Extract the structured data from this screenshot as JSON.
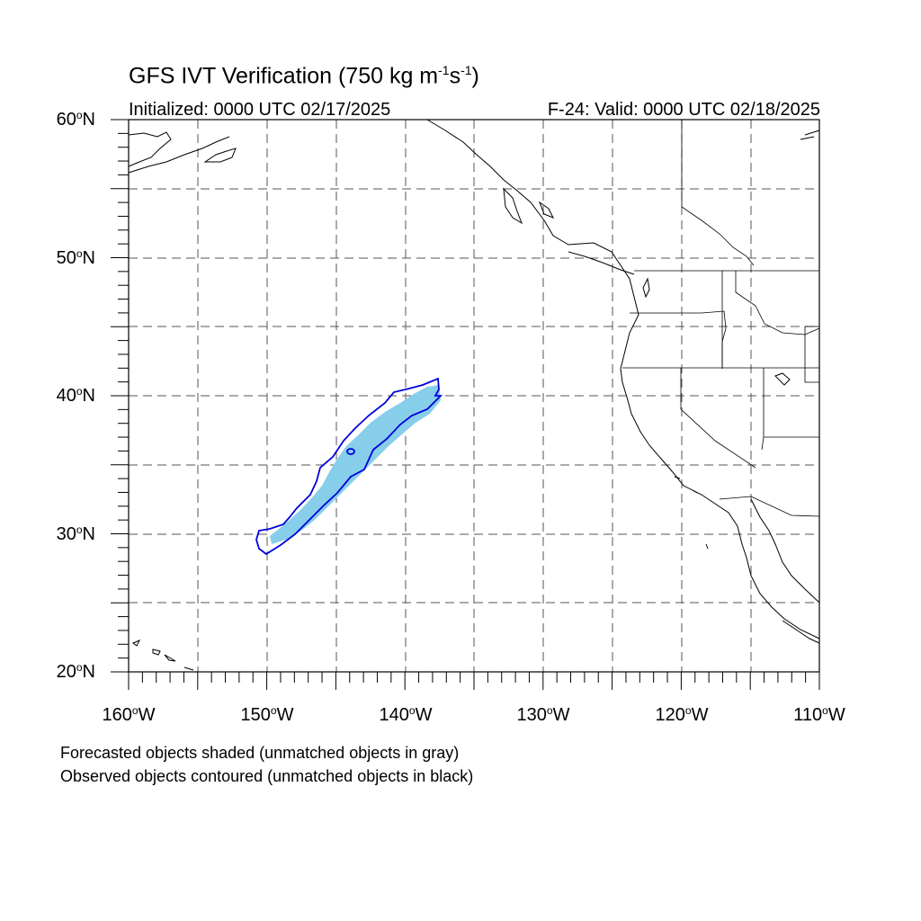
{
  "title": {
    "main": "GFS IVT Verification (750 kg m",
    "exp1": "-1",
    "mid": "s",
    "exp2": "-1",
    "end": ")"
  },
  "subtitle_left": "Initialized: 0000 UTC 02/17/2025",
  "subtitle_right": "F-24: Valid: 0000 UTC 02/18/2025",
  "lat_labels": [
    {
      "value": "60",
      "hemi": "N"
    },
    {
      "value": "50",
      "hemi": "N"
    },
    {
      "value": "40",
      "hemi": "N"
    },
    {
      "value": "30",
      "hemi": "N"
    },
    {
      "value": "20",
      "hemi": "N"
    }
  ],
  "lon_labels": [
    {
      "value": "160",
      "hemi": "W"
    },
    {
      "value": "150",
      "hemi": "W"
    },
    {
      "value": "140",
      "hemi": "W"
    },
    {
      "value": "130",
      "hemi": "W"
    },
    {
      "value": "120",
      "hemi": "W"
    },
    {
      "value": "110",
      "hemi": "W"
    }
  ],
  "footer": {
    "line1": "Forecasted objects shaded (unmatched objects in gray)",
    "line2": "Observed objects contoured (unmatched objects in black)"
  },
  "colors": {
    "forecast_fill": "#87ceeb",
    "observed_contour": "#0000dd",
    "grid": "#555555",
    "coast": "#000000"
  }
}
